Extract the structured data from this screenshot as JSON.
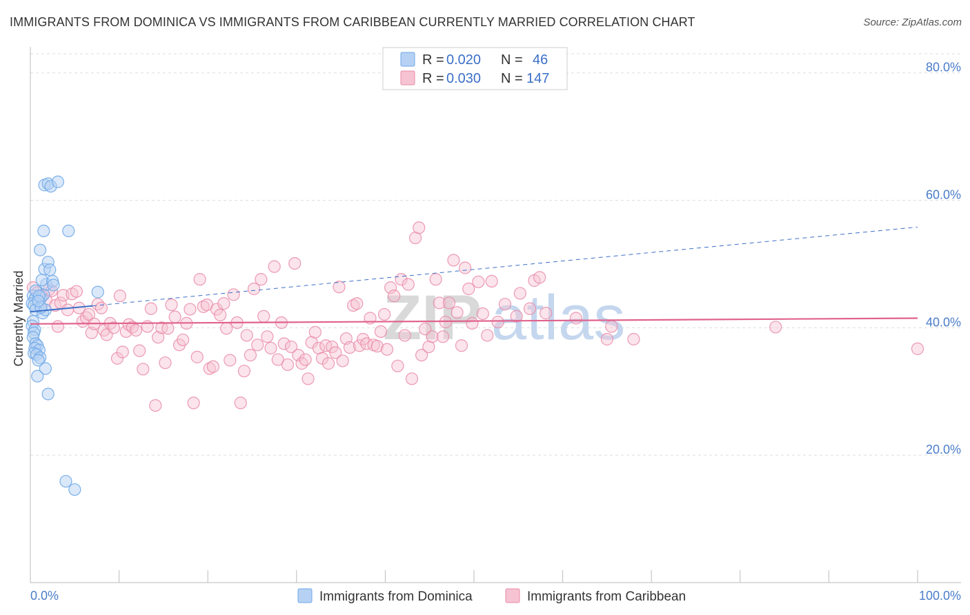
{
  "title": "IMMIGRANTS FROM DOMINICA VS IMMIGRANTS FROM CARIBBEAN CURRENTLY MARRIED CORRELATION CHART",
  "source": "Source: ZipAtlas.com",
  "watermark": {
    "zip": "ZIP",
    "atlas": "atlas"
  },
  "colors": {
    "blue": "#6fa8e8",
    "blue_fill": "#b6d1f3",
    "blue_line": "#3b6fc7",
    "pink": "#e98aa8",
    "pink_fill": "#f6c3d2",
    "pink_line": "#e0628c",
    "grid": "#dddddd",
    "tick_text": "#4a7cc9"
  },
  "legend": {
    "rows": [
      {
        "r_label": "R =",
        "r_value": "0.020",
        "n_label": "N =",
        "n_value": "46"
      },
      {
        "r_label": "R =",
        "r_value": "0.030",
        "n_label": "N =",
        "n_value": "147"
      }
    ]
  },
  "chart_data": {
    "type": "scatter",
    "title": "IMMIGRANTS FROM DOMINICA VS IMMIGRANTS FROM CARIBBEAN CURRENTLY MARRIED CORRELATION CHART",
    "xlabel": "",
    "ylabel": "Currently Married",
    "xlim": [
      0,
      100
    ],
    "ylim": [
      0,
      83
    ],
    "x_tick_labels": [
      "0.0%",
      "100.0%"
    ],
    "y_ticks": [
      20,
      40,
      60,
      80
    ],
    "y_tick_labels": [
      "20.0%",
      "40.0%",
      "60.0%",
      "80.0%"
    ],
    "grid": true,
    "legend_position": "bottom",
    "series": [
      {
        "name": "Immigrants from Dominica",
        "color": "#6fa8e8",
        "trend": {
          "x": [
            0,
            100
          ],
          "y": [
            42.5,
            55.8
          ],
          "style": "dashed",
          "solid_until": 7
        },
        "points": [
          [
            0.3,
            45.0
          ],
          [
            0.5,
            44.5
          ],
          [
            0.2,
            43.8
          ],
          [
            0.4,
            43.5
          ],
          [
            0.6,
            42.8
          ],
          [
            0.3,
            41.0
          ],
          [
            0.2,
            40.3
          ],
          [
            0.5,
            39.7
          ],
          [
            0.4,
            39.2
          ],
          [
            0.3,
            38.5
          ],
          [
            0.6,
            37.5
          ],
          [
            0.8,
            37.2
          ],
          [
            0.5,
            36.8
          ],
          [
            1.0,
            36.5
          ],
          [
            0.4,
            36.0
          ],
          [
            0.7,
            35.8
          ],
          [
            1.1,
            35.3
          ],
          [
            0.9,
            34.9
          ],
          [
            1.2,
            44.7
          ],
          [
            1.5,
            45.2
          ],
          [
            1.8,
            46.8
          ],
          [
            1.3,
            47.5
          ],
          [
            1.6,
            49.2
          ],
          [
            2.0,
            50.3
          ],
          [
            1.1,
            52.2
          ],
          [
            1.5,
            55.2
          ],
          [
            4.3,
            55.2
          ],
          [
            1.6,
            62.4
          ],
          [
            2.0,
            62.6
          ],
          [
            2.3,
            62.2
          ],
          [
            3.1,
            62.9
          ],
          [
            1.4,
            42.3
          ],
          [
            1.7,
            42.8
          ],
          [
            1.2,
            43.2
          ],
          [
            2.5,
            47.3
          ],
          [
            2.6,
            46.7
          ],
          [
            7.6,
            45.6
          ],
          [
            1.7,
            33.6
          ],
          [
            0.8,
            32.4
          ],
          [
            2.0,
            29.6
          ],
          [
            4.0,
            15.9
          ],
          [
            5.0,
            14.6
          ],
          [
            0.6,
            45.8
          ],
          [
            1.0,
            45.0
          ],
          [
            0.9,
            44.2
          ],
          [
            2.2,
            49.1
          ]
        ]
      },
      {
        "name": "Immigrants from Caribbean",
        "color": "#e98aa8",
        "trend": {
          "x": [
            0,
            100
          ],
          "y": [
            40.6,
            41.5
          ],
          "style": "solid"
        },
        "points": [
          [
            0.3,
            46.3
          ],
          [
            0.8,
            45.5
          ],
          [
            1.3,
            45.0
          ],
          [
            1.8,
            44.3
          ],
          [
            2.1,
            46.0
          ],
          [
            2.4,
            45.8
          ],
          [
            2.8,
            43.5
          ],
          [
            3.1,
            40.2
          ],
          [
            3.4,
            43.9
          ],
          [
            3.7,
            45.1
          ],
          [
            4.2,
            42.8
          ],
          [
            4.7,
            45.3
          ],
          [
            5.2,
            45.7
          ],
          [
            5.5,
            43.1
          ],
          [
            5.9,
            41.0
          ],
          [
            6.3,
            41.6
          ],
          [
            6.6,
            42.1
          ],
          [
            6.9,
            39.2
          ],
          [
            7.2,
            40.6
          ],
          [
            7.6,
            43.7
          ],
          [
            8.0,
            43.1
          ],
          [
            8.3,
            39.6
          ],
          [
            8.6,
            38.9
          ],
          [
            9.0,
            40.7
          ],
          [
            9.4,
            40.0
          ],
          [
            9.8,
            35.2
          ],
          [
            10.1,
            45.0
          ],
          [
            10.4,
            36.2
          ],
          [
            10.8,
            39.4
          ],
          [
            11.1,
            40.5
          ],
          [
            11.5,
            40.1
          ],
          [
            11.9,
            39.6
          ],
          [
            12.3,
            36.4
          ],
          [
            12.7,
            33.5
          ],
          [
            13.2,
            40.2
          ],
          [
            13.6,
            43.0
          ],
          [
            14.1,
            27.8
          ],
          [
            14.4,
            38.5
          ],
          [
            14.8,
            40.0
          ],
          [
            15.2,
            34.5
          ],
          [
            15.5,
            39.9
          ],
          [
            15.9,
            43.6
          ],
          [
            16.3,
            41.7
          ],
          [
            16.8,
            37.3
          ],
          [
            17.2,
            38.1
          ],
          [
            17.6,
            40.7
          ],
          [
            18.0,
            42.9
          ],
          [
            18.4,
            28.2
          ],
          [
            18.8,
            35.4
          ],
          [
            19.1,
            47.6
          ],
          [
            19.5,
            43.3
          ],
          [
            19.9,
            43.6
          ],
          [
            20.2,
            33.6
          ],
          [
            20.6,
            33.9
          ],
          [
            21.0,
            42.9
          ],
          [
            21.4,
            42.0
          ],
          [
            21.8,
            43.8
          ],
          [
            22.1,
            39.9
          ],
          [
            22.5,
            34.9
          ],
          [
            22.9,
            45.2
          ],
          [
            23.3,
            40.8
          ],
          [
            23.7,
            28.2
          ],
          [
            24.1,
            33.2
          ],
          [
            24.4,
            38.8
          ],
          [
            24.8,
            35.7
          ],
          [
            25.2,
            46.1
          ],
          [
            25.6,
            37.3
          ],
          [
            26.0,
            47.6
          ],
          [
            26.3,
            41.8
          ],
          [
            26.7,
            38.6
          ],
          [
            27.1,
            36.8
          ],
          [
            27.5,
            49.6
          ],
          [
            27.9,
            35.0
          ],
          [
            28.3,
            40.8
          ],
          [
            28.6,
            37.5
          ],
          [
            29.0,
            34.2
          ],
          [
            29.4,
            37.0
          ],
          [
            29.8,
            50.1
          ],
          [
            30.2,
            35.7
          ],
          [
            30.6,
            34.4
          ],
          [
            31.0,
            35.0
          ],
          [
            31.3,
            32.0
          ],
          [
            31.7,
            37.7
          ],
          [
            32.1,
            39.3
          ],
          [
            32.5,
            36.8
          ],
          [
            32.9,
            35.2
          ],
          [
            33.3,
            37.2
          ],
          [
            33.6,
            34.4
          ],
          [
            34.0,
            37.0
          ],
          [
            34.4,
            36.1
          ],
          [
            34.8,
            46.4
          ],
          [
            35.2,
            34.8
          ],
          [
            35.6,
            38.3
          ],
          [
            36.0,
            36.9
          ],
          [
            36.4,
            43.5
          ],
          [
            36.8,
            43.8
          ],
          [
            37.1,
            37.2
          ],
          [
            37.5,
            38.2
          ],
          [
            37.9,
            37.5
          ],
          [
            38.3,
            41.5
          ],
          [
            38.7,
            37.3
          ],
          [
            39.1,
            37.1
          ],
          [
            39.5,
            39.4
          ],
          [
            39.9,
            42.1
          ],
          [
            40.2,
            36.6
          ],
          [
            40.6,
            46.3
          ],
          [
            41.0,
            45.0
          ],
          [
            41.4,
            34.0
          ],
          [
            41.8,
            47.6
          ],
          [
            42.2,
            38.8
          ],
          [
            42.6,
            46.8
          ],
          [
            43.0,
            32.0
          ],
          [
            43.4,
            54.1
          ],
          [
            43.8,
            55.7
          ],
          [
            44.1,
            35.7
          ],
          [
            44.5,
            39.8
          ],
          [
            44.9,
            37.0
          ],
          [
            45.3,
            38.6
          ],
          [
            45.7,
            47.6
          ],
          [
            46.1,
            43.9
          ],
          [
            46.5,
            38.6
          ],
          [
            46.8,
            40.9
          ],
          [
            47.2,
            43.9
          ],
          [
            47.7,
            50.6
          ],
          [
            48.1,
            42.4
          ],
          [
            48.6,
            37.2
          ],
          [
            49.0,
            49.4
          ],
          [
            49.4,
            46.1
          ],
          [
            49.8,
            40.7
          ],
          [
            50.5,
            47.2
          ],
          [
            51.0,
            42.2
          ],
          [
            51.5,
            38.8
          ],
          [
            52.0,
            47.3
          ],
          [
            52.7,
            40.9
          ],
          [
            53.5,
            43.7
          ],
          [
            54.8,
            41.8
          ],
          [
            55.2,
            45.4
          ],
          [
            56.3,
            43.0
          ],
          [
            56.8,
            47.4
          ],
          [
            57.4,
            47.9
          ],
          [
            58.1,
            42.3
          ],
          [
            61.5,
            41.5
          ],
          [
            65.0,
            38.2
          ],
          [
            65.5,
            40.2
          ],
          [
            68.0,
            38.2
          ],
          [
            84.0,
            40.1
          ],
          [
            100.0,
            36.7
          ]
        ]
      }
    ]
  },
  "bottom_legend": {
    "items": [
      {
        "label": "Immigrants from Dominica"
      },
      {
        "label": "Immigrants from Caribbean"
      }
    ]
  }
}
